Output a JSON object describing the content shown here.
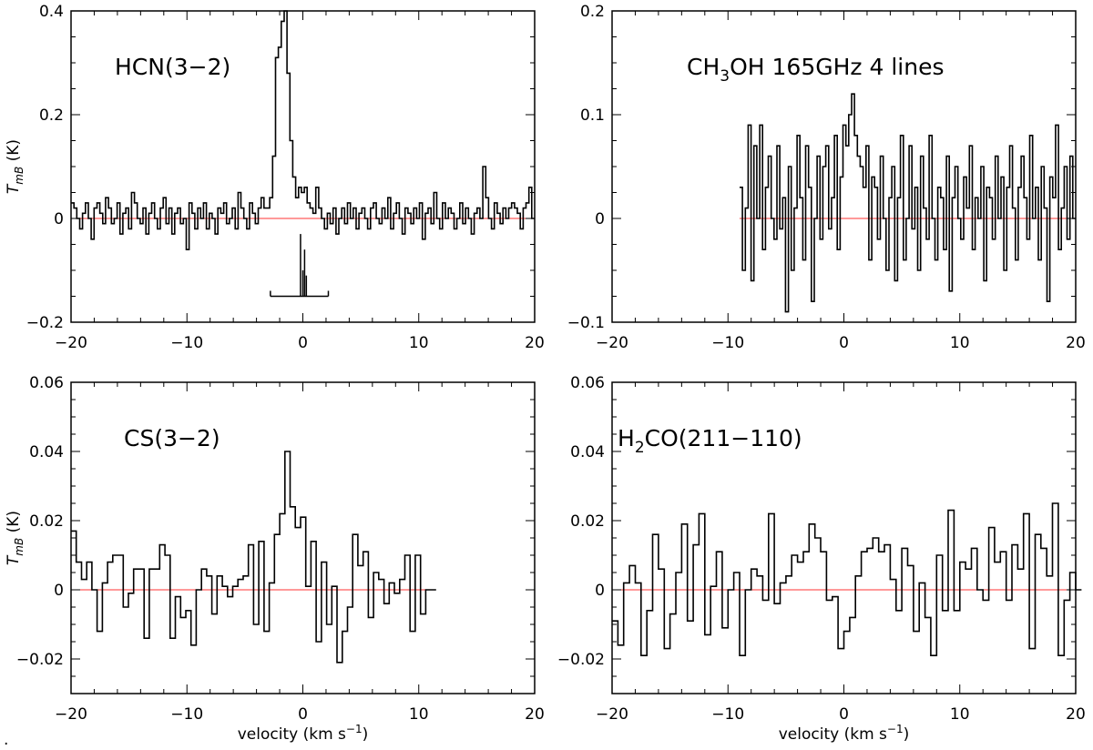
{
  "chart_data": [
    {
      "type": "line",
      "step": true,
      "title": "HCN(3−2)",
      "xlabel": "",
      "ylabel_main": "T",
      "ylabel_sub": "mB",
      "ylabel_unit": " (K)",
      "xlim": [
        -20,
        20
      ],
      "ylim": [
        -0.2,
        0.4
      ],
      "xticks": [
        -20,
        -10,
        0,
        10,
        20
      ],
      "xtick_labels": [
        "−20",
        "−10",
        "0",
        "10",
        "20"
      ],
      "yticks": [
        -0.2,
        0,
        0.2,
        0.4
      ],
      "ytick_labels": [
        "−0.2",
        "0",
        "0.2",
        "0.4"
      ],
      "baseline": 0,
      "baseline_color": "#ff3333",
      "x_start": -20,
      "x_end": 20,
      "values": [
        0.03,
        0.02,
        0.0,
        -0.02,
        0.01,
        0.03,
        0.0,
        -0.04,
        0.02,
        0.03,
        0.01,
        -0.01,
        0.04,
        0.02,
        -0.01,
        0.0,
        0.03,
        -0.03,
        0.01,
        0.02,
        -0.02,
        0.05,
        0.03,
        0.0,
        -0.01,
        0.02,
        -0.03,
        0.01,
        0.03,
        0.0,
        -0.02,
        0.02,
        0.04,
        -0.01,
        0.02,
        -0.03,
        0.01,
        0.02,
        -0.01,
        0.0,
        -0.06,
        0.03,
        0.01,
        -0.02,
        0.02,
        0.0,
        0.03,
        -0.02,
        0.01,
        0.0,
        -0.03,
        0.02,
        0.01,
        0.03,
        -0.01,
        0.0,
        0.02,
        -0.02,
        0.05,
        0.02,
        0.0,
        -0.02,
        0.03,
        0.01,
        -0.01,
        0.02,
        0.04,
        0.02,
        0.02,
        0.04,
        0.12,
        0.31,
        0.33,
        0.38,
        0.4,
        0.28,
        0.15,
        0.08,
        0.04,
        0.06,
        0.05,
        0.06,
        0.03,
        0.02,
        0.01,
        0.06,
        0.02,
        0.0,
        -0.02,
        0.01,
        -0.01,
        0.02,
        -0.03,
        0.0,
        0.02,
        -0.01,
        0.03,
        0.0,
        0.02,
        -0.02,
        0.01,
        0.02,
        0.0,
        -0.02,
        0.02,
        0.03,
        0.0,
        -0.01,
        0.02,
        0.0,
        0.04,
        -0.02,
        0.01,
        0.03,
        0.0,
        -0.03,
        0.02,
        0.01,
        -0.01,
        0.02,
        0.0,
        0.03,
        -0.04,
        0.01,
        0.02,
        -0.01,
        0.05,
        0.0,
        -0.02,
        0.03,
        0.0,
        0.02,
        0.01,
        -0.02,
        0.0,
        0.03,
        -0.01,
        0.02,
        0.0,
        -0.03,
        0.01,
        0.02,
        0.0,
        0.1,
        0.04,
        0.0,
        -0.02,
        0.03,
        0.01,
        -0.01,
        0.02,
        0.0,
        0.02,
        0.03,
        0.02,
        0.01,
        -0.02,
        0.02,
        0.03,
        0.06,
        0.0
      ],
      "annotation_marker": {
        "type": "bracket",
        "center": 0,
        "x_left": -2.8,
        "x_right": 2.2,
        "y": -0.15,
        "lines_x": [
          -0.2,
          0.0,
          0.15,
          0.3
        ],
        "lines_y_top": [
          -0.03,
          -0.1,
          -0.06,
          -0.11
        ]
      }
    },
    {
      "type": "line",
      "step": true,
      "title_parts": [
        "CH",
        "3",
        "OH  165GHz  4 lines"
      ],
      "xlabel": "",
      "xlim": [
        -20,
        20
      ],
      "ylim": [
        -0.1,
        0.2
      ],
      "xticks": [
        -20,
        -10,
        0,
        10,
        20
      ],
      "xtick_labels": [
        "−20",
        "−10",
        "0",
        "10",
        "20"
      ],
      "yticks": [
        -0.1,
        0,
        0.1,
        0.2
      ],
      "ytick_labels": [
        "−0.1",
        "0",
        "0.1",
        "0.2"
      ],
      "baseline": 0,
      "baseline_color": "#ff3333",
      "x_start": -9,
      "x_end": 20,
      "values": [
        0.03,
        -0.05,
        0.01,
        0.09,
        -0.06,
        0.07,
        0.0,
        0.09,
        -0.03,
        0.03,
        0.06,
        0.0,
        -0.02,
        0.07,
        -0.01,
        0.02,
        -0.09,
        0.05,
        -0.05,
        0.01,
        0.08,
        0.02,
        -0.04,
        0.07,
        0.03,
        -0.08,
        0.0,
        0.06,
        -0.02,
        0.05,
        0.07,
        -0.01,
        0.02,
        0.08,
        -0.03,
        0.04,
        0.09,
        0.07,
        0.1,
        0.12,
        0.08,
        0.06,
        0.05,
        0.03,
        0.07,
        -0.04,
        0.04,
        0.03,
        -0.02,
        0.06,
        0.0,
        -0.05,
        0.02,
        0.05,
        -0.06,
        0.02,
        0.08,
        -0.04,
        0.0,
        0.07,
        -0.01,
        0.03,
        -0.05,
        0.06,
        0.01,
        -0.02,
        0.08,
        0.0,
        -0.04,
        0.03,
        0.02,
        -0.03,
        0.06,
        -0.07,
        0.02,
        0.05,
        0.0,
        -0.02,
        0.04,
        0.01,
        0.07,
        -0.03,
        0.02,
        0.0,
        0.05,
        -0.06,
        0.03,
        0.02,
        -0.02,
        0.06,
        0.0,
        0.04,
        -0.05,
        0.03,
        0.07,
        0.01,
        -0.04,
        0.03,
        0.06,
        0.02,
        -0.02,
        0.08,
        0.0,
        0.03,
        -0.04,
        0.05,
        0.01,
        -0.08,
        0.04,
        0.02,
        0.09,
        -0.03,
        0.01,
        0.05,
        -0.02,
        0.06,
        0.0
      ]
    },
    {
      "type": "line",
      "step": true,
      "title": "CS(3−2)",
      "xlabel": "velocity  (km  s",
      "xlabel_sup": "−1",
      "xlabel_end": ")",
      "ylabel_main": "T",
      "ylabel_sub": "mB",
      "ylabel_unit": " (K)",
      "xlim": [
        -20,
        20
      ],
      "ylim": [
        -0.03,
        0.06
      ],
      "xticks": [
        -20,
        -10,
        0,
        10,
        20
      ],
      "xtick_labels": [
        "−20",
        "−10",
        "0",
        "10",
        "20"
      ],
      "yticks": [
        -0.02,
        0,
        0.02,
        0.04,
        0.06
      ],
      "ytick_labels": [
        "−0.02",
        "0",
        "0.02",
        "0.04",
        "0.06"
      ],
      "baseline": 0,
      "baseline_color": "#ff3333",
      "x_start": -20,
      "x_end": 11,
      "values": [
        0.017,
        0.008,
        0.003,
        0.008,
        0.0,
        -0.012,
        0.002,
        0.008,
        0.01,
        0.01,
        -0.005,
        -0.001,
        0.006,
        0.006,
        -0.014,
        0.006,
        0.006,
        0.013,
        0.01,
        -0.014,
        -0.002,
        -0.008,
        -0.006,
        -0.016,
        0.0,
        0.006,
        0.004,
        -0.007,
        0.004,
        0.001,
        -0.002,
        0.001,
        0.003,
        0.004,
        0.013,
        -0.01,
        0.014,
        -0.012,
        0.002,
        0.016,
        0.022,
        0.04,
        0.024,
        0.018,
        0.021,
        0.001,
        0.014,
        -0.015,
        0.008,
        -0.01,
        0.001,
        -0.021,
        -0.012,
        -0.005,
        0.016,
        0.007,
        0.011,
        -0.008,
        0.005,
        0.003,
        -0.004,
        0.002,
        -0.001,
        0.003,
        0.01,
        -0.012,
        0.01,
        -0.007,
        0.0,
        0.0
      ],
      "x_step_override": 0.45
    },
    {
      "type": "line",
      "step": true,
      "title_parts": [
        "H",
        "2",
        "CO(211−110)"
      ],
      "xlabel": "velocity  (km  s",
      "xlabel_sup": "−1",
      "xlabel_end": ")",
      "xlim": [
        -20,
        20
      ],
      "ylim": [
        -0.03,
        0.06
      ],
      "xticks": [
        -20,
        -10,
        0,
        10,
        20
      ],
      "xtick_labels": [
        "−20",
        "−10",
        "0",
        "10",
        "20"
      ],
      "yticks": [
        -0.02,
        0,
        0.02,
        0.04,
        0.06
      ],
      "ytick_labels": [
        "−0.02",
        "0",
        "0.02",
        "0.04",
        "0.06"
      ],
      "baseline": 0,
      "baseline_color": "#ff3333",
      "x_start": -20,
      "x_end": 20,
      "values": [
        -0.009,
        -0.016,
        0.002,
        0.007,
        0.002,
        -0.019,
        -0.006,
        0.016,
        0.006,
        -0.017,
        -0.007,
        0.005,
        0.019,
        -0.009,
        0.013,
        0.022,
        -0.013,
        0.001,
        0.011,
        -0.011,
        0.0,
        0.005,
        -0.019,
        0.0,
        0.006,
        0.004,
        -0.003,
        0.022,
        -0.004,
        0.002,
        0.004,
        0.01,
        0.008,
        0.011,
        0.019,
        0.015,
        0.011,
        -0.003,
        -0.002,
        -0.017,
        -0.012,
        -0.008,
        0.004,
        0.011,
        0.012,
        0.015,
        0.011,
        0.013,
        0.003,
        -0.006,
        0.012,
        0.007,
        -0.012,
        0.002,
        -0.008,
        -0.019,
        0.01,
        -0.006,
        0.023,
        -0.006,
        0.008,
        0.006,
        0.012,
        0.0,
        -0.003,
        0.018,
        0.008,
        0.011,
        -0.003,
        0.013,
        0.006,
        0.022,
        -0.017,
        0.016,
        0.012,
        0.004,
        0.025,
        -0.019,
        -0.003,
        0.005,
        0.0
      ],
      "x_step_override": 0.5
    }
  ],
  "footer": {
    "corner_mark": "."
  }
}
